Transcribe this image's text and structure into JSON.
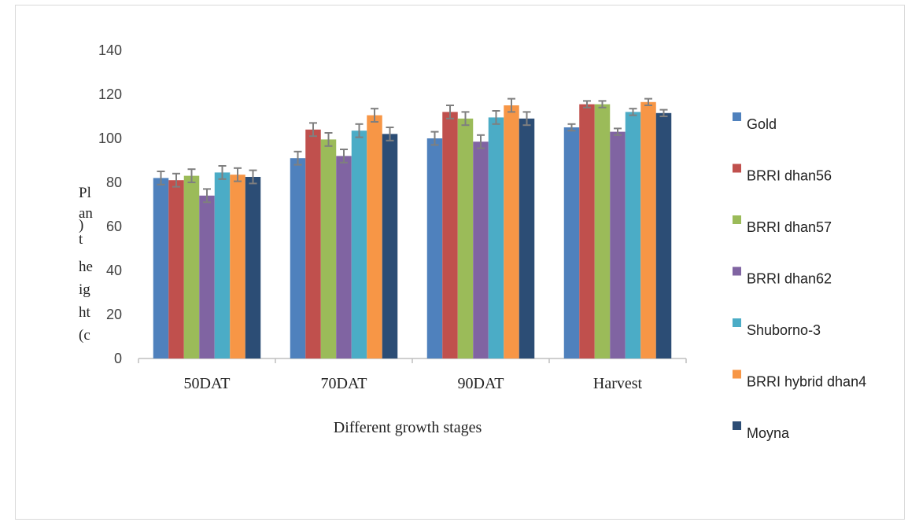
{
  "chart_data": {
    "type": "bar",
    "categories": [
      "50DAT",
      "70DAT",
      "90DAT",
      "Harvest"
    ],
    "series": [
      {
        "name": "Gold",
        "color": "#4f81bd",
        "values": [
          82,
          91,
          100,
          105
        ],
        "errors": [
          3,
          3,
          3,
          1.5
        ]
      },
      {
        "name": "BRRI dhan56",
        "color": "#c0504d",
        "values": [
          81,
          104,
          112,
          115.5
        ],
        "errors": [
          3,
          3,
          3,
          1.5
        ]
      },
      {
        "name": "BRRI dhan57",
        "color": "#9bbb59",
        "values": [
          83,
          99.5,
          109,
          115.5
        ],
        "errors": [
          3,
          3,
          3,
          1.5
        ]
      },
      {
        "name": "BRRI dhan62",
        "color": "#8064a2",
        "values": [
          74,
          92,
          98.5,
          103
        ],
        "errors": [
          3,
          3,
          3,
          1.5
        ]
      },
      {
        "name": "Shuborno-3",
        "color": "#4bacc6",
        "values": [
          84.5,
          103.5,
          109.5,
          112
        ],
        "errors": [
          3,
          3,
          3,
          1.5
        ]
      },
      {
        "name": "BRRI hybrid dhan4",
        "color": "#f79646",
        "values": [
          83.5,
          110.5,
          115,
          116.5
        ],
        "errors": [
          3,
          3,
          3,
          1.5
        ]
      },
      {
        "name": "Moyna",
        "color": "#2c4d75",
        "values": [
          82.5,
          102,
          109,
          111.5
        ],
        "errors": [
          3,
          3,
          3,
          1.5
        ]
      }
    ],
    "yticks": [
      0,
      20,
      40,
      60,
      80,
      100,
      120,
      140
    ],
    "ylim": [
      0,
      140
    ],
    "xlabel": "Different growth stages",
    "ylabel_lines": [
      "Pl",
      "an",
      "t",
      "he",
      "ig",
      "ht",
      "(c",
      ")"
    ],
    "legend_position": "right",
    "grid": false
  }
}
